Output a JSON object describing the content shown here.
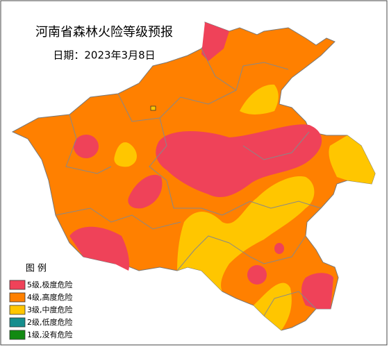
{
  "title": "河南省森林火险等级预报",
  "date": "日期：2023年3月8日",
  "legend": {
    "title": "图 例",
    "items": [
      {
        "label": "5级,极度危险",
        "color": "#ef4259"
      },
      {
        "label": "4级,高度危险",
        "color": "#ff8000"
      },
      {
        "label": "3级,中度危险",
        "color": "#ffc600"
      },
      {
        "label": "2级,低度危险",
        "color": "#158d8d"
      },
      {
        "label": "1级,没有危险",
        "color": "#128a12"
      }
    ]
  }
}
